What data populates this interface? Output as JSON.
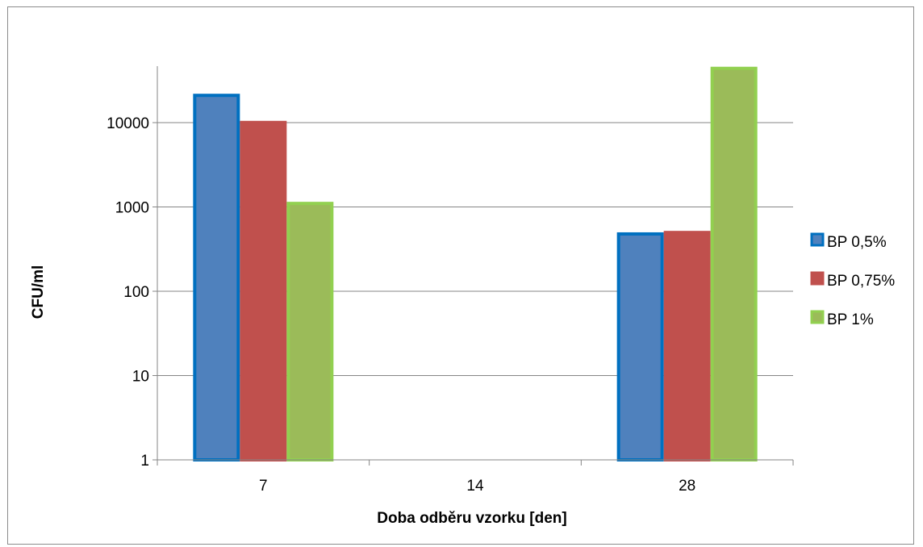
{
  "chart_data": {
    "type": "bar",
    "scale": "log",
    "categories": [
      "7",
      "14",
      "28"
    ],
    "series": [
      {
        "name": "BP 0,5%",
        "values": [
          22000,
          null,
          500
        ],
        "color": "#4f81bd",
        "border": "#0070c0"
      },
      {
        "name": "BP 0,75%",
        "values": [
          10500,
          null,
          520
        ],
        "color": "#c0504d",
        "border": "#c0504d"
      },
      {
        "name": "BP 1%",
        "values": [
          1150,
          null,
          46000
        ],
        "color": "#9bbb59",
        "border": "#92d050"
      }
    ],
    "yticks": [
      "1",
      "10",
      "100",
      "1000",
      "10000"
    ],
    "ylim": [
      1,
      46000
    ],
    "xlabel": "Doba odběru vzorku [den]",
    "ylabel": "CFU/ml",
    "grid": true,
    "legend": "right"
  }
}
